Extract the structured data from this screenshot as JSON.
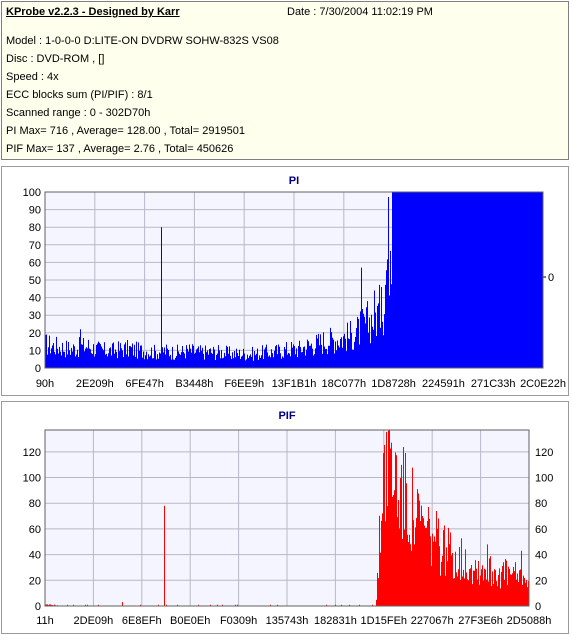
{
  "header": {
    "title": "KProbe v2.2.3 - Designed by Karr",
    "date": "Date : 7/30/2004 11:02:19 PM",
    "model": "Model : 1-0-0-0 D:LITE-ON DVDRW SOHW-832S  VS08",
    "disc": "Disc : DVD-ROM ,  []",
    "speed": "Speed : 4x",
    "ecc": "ECC blocks sum (PI/PIF) : 8/1",
    "range": "Scanned range : 0 - 302D70h",
    "pi_stats": "PI Max= 716 , Average= 128.00 , Total= 2919501",
    "pif_stats": "PIF Max= 137 , Average= 2.76 , Total= 450626"
  },
  "colors": {
    "pi": "#0000ff",
    "pif": "#ff0000",
    "title": "#000080",
    "plot_bg": "#f5f5ff"
  },
  "chart_data": [
    {
      "type": "area",
      "title": "PI",
      "ylim": [
        0,
        100
      ],
      "y_ticks": [
        0,
        10,
        20,
        30,
        40,
        50,
        60,
        70,
        80,
        90,
        100
      ],
      "right_ticks": [
        "0"
      ],
      "x_tick_labels": [
        "90h",
        "2E209h",
        "6FE47h",
        "B3448h",
        "F6EE9h",
        "13F1B1h",
        "18C077h",
        "1D8728h",
        "224591h",
        "271C33h",
        "2C0E22h"
      ],
      "grid": true,
      "series": [
        {
          "values": [
            15,
            14,
            13,
            12,
            13,
            14,
            12,
            11,
            11,
            12,
            12,
            11,
            11,
            10,
            11,
            10,
            10,
            11,
            10,
            10,
            10,
            10,
            9,
            9,
            9,
            9,
            10,
            10,
            11,
            12,
            12,
            14,
            15,
            17,
            18,
            19,
            20,
            23,
            28,
            33,
            38,
            100,
            100,
            100,
            100,
            100,
            100,
            100,
            100,
            100,
            100,
            100,
            100,
            100,
            100,
            100,
            100,
            100,
            100,
            100
          ],
          "peaks": [
            {
              "at": 0.07,
              "value": 22
            },
            {
              "at": 0.233,
              "value": 80
            },
            {
              "at": 0.635,
              "value": 57
            },
            {
              "at": 0.66,
              "value": 44
            },
            {
              "at": 0.675,
              "value": 46
            }
          ]
        }
      ]
    },
    {
      "type": "area",
      "title": "PIF",
      "ylim": [
        0,
        137
      ],
      "y_ticks": [
        0,
        20,
        40,
        60,
        80,
        100,
        120
      ],
      "x_tick_labels": [
        "11h",
        "2DE09h",
        "6E8EFh",
        "B0E0Eh",
        "F0309h",
        "135743h",
        "182831h",
        "1D15FEh",
        "227067h",
        "27F3E6h",
        "2D5088h"
      ],
      "grid": true,
      "series": [
        {
          "values": [
            1,
            1,
            0,
            0,
            0,
            0,
            0,
            0,
            0,
            0,
            0,
            0,
            0,
            0,
            0,
            0,
            0,
            0,
            0,
            0,
            0,
            0,
            0,
            0,
            0,
            0,
            0,
            0,
            0,
            0,
            0,
            0,
            0,
            0,
            0,
            0,
            0,
            0,
            0,
            0,
            0,
            0,
            130,
            115,
            100,
            85,
            75,
            65,
            58,
            52,
            47,
            42,
            38,
            35,
            32,
            30,
            30,
            28,
            26,
            24,
            22
          ],
          "peaks": [
            {
              "at": 0.246,
              "value": 78
            },
            {
              "at": 0.16,
              "value": 3
            },
            {
              "at": 0.913,
              "value": 48
            },
            {
              "at": 0.983,
              "value": 43
            }
          ]
        }
      ]
    }
  ]
}
